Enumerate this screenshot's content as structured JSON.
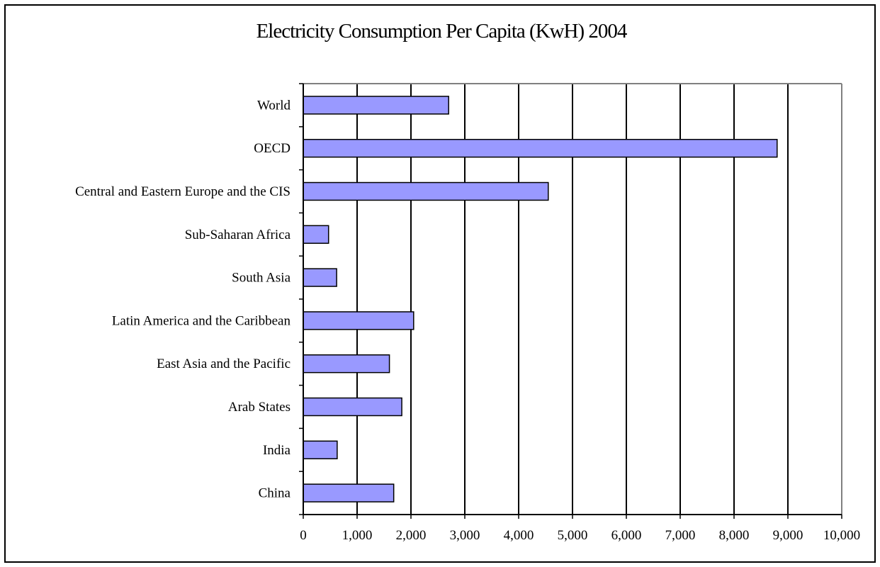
{
  "chart_data": {
    "type": "bar",
    "orientation": "horizontal",
    "title": "Electricity Consumption Per Capita (KwH) 2004",
    "xlabel": "",
    "ylabel": "",
    "categories": [
      "World",
      "OECD",
      "Central and Eastern Europe and the CIS",
      "Sub-Saharan Africa",
      "South Asia",
      "Latin America and the Caribbean",
      "East Asia and the Pacific",
      "Arab States",
      "India",
      "China"
    ],
    "values": [
      2700,
      8800,
      4550,
      470,
      620,
      2050,
      1600,
      1830,
      630,
      1680
    ],
    "xlim": [
      0,
      10000
    ],
    "x_ticks": [
      0,
      1000,
      2000,
      3000,
      4000,
      5000,
      6000,
      7000,
      8000,
      9000,
      10000
    ],
    "x_tick_labels": [
      "0",
      "1,000",
      "2,000",
      "3,000",
      "4,000",
      "5,000",
      "6,000",
      "7,000",
      "8,000",
      "9,000",
      "10,000"
    ],
    "grid": "vertical",
    "legend": "none",
    "colors": {
      "bar_fill": "#9999ff",
      "bar_stroke": "#000000",
      "grid": "#000000",
      "plot_border": "#808080"
    }
  }
}
